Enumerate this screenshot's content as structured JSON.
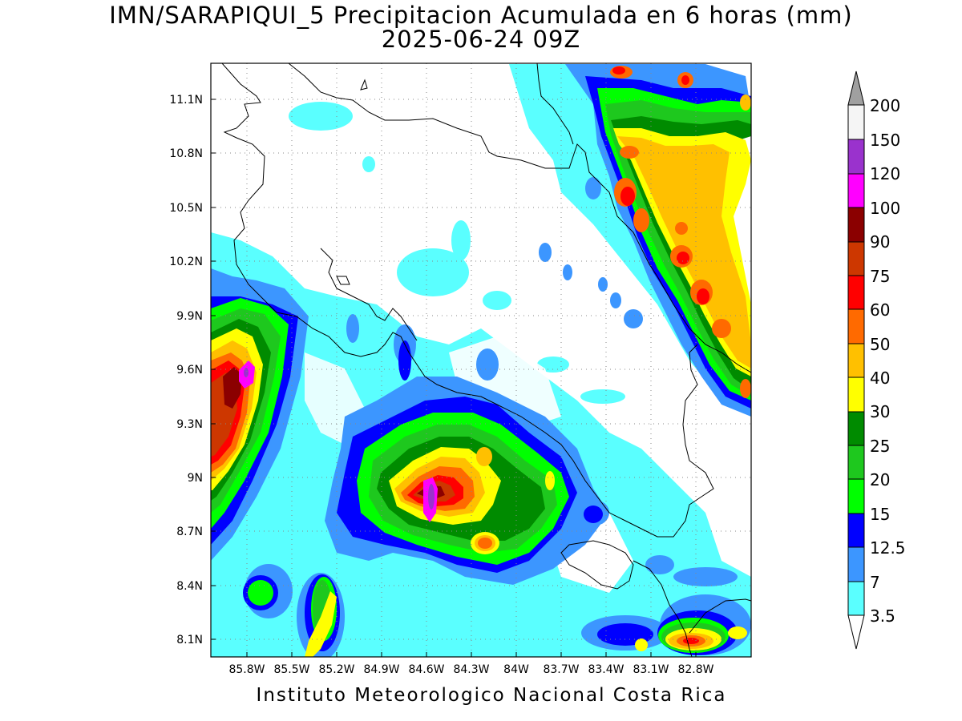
{
  "title": {
    "line1": "IMN/SARAPIQUI_5 Precipitacion Acumulada en 6 horas (mm)",
    "line2": "2025-06-24 09Z"
  },
  "footer": "Instituto Meteorologico Nacional Costa Rica",
  "map": {
    "lon_labels": [
      "85.8W",
      "85.5W",
      "85.2W",
      "84.9W",
      "84.6W",
      "84.3W",
      "84W",
      "83.7W",
      "83.4W",
      "83.1W",
      "82.8W"
    ],
    "lat_labels": [
      "11.1N",
      "10.8N",
      "10.5N",
      "10.2N",
      "9.9N",
      "9.6N",
      "9.3N",
      "9N",
      "8.7N",
      "8.4N",
      "8.1N"
    ],
    "grid": "dotted",
    "units": "mm",
    "accumulation_hours": 6
  },
  "colorbar": {
    "levels": [
      "200",
      "150",
      "120",
      "100",
      "90",
      "75",
      "60",
      "50",
      "40",
      "30",
      "25",
      "20",
      "15",
      "12.5",
      "7",
      "3.5"
    ],
    "colors": {
      "over": "#a0a0a0",
      "150-200": "#f5f5f5",
      "120-150": "#9a32cd",
      "100-120": "#ff00ff",
      "90-100": "#8b0000",
      "75-90": "#cd3700",
      "60-75": "#ff0000",
      "50-60": "#ff6a00",
      "40-50": "#ffc000",
      "30-40": "#ffff00",
      "25-30": "#008b00",
      "20-25": "#1ec81e",
      "15-20": "#00ff00",
      "12.5-15": "#0000ff",
      "7-12.5": "#3c96ff",
      "3.5-7": "#5affff",
      "under": "#ffffff"
    }
  }
}
